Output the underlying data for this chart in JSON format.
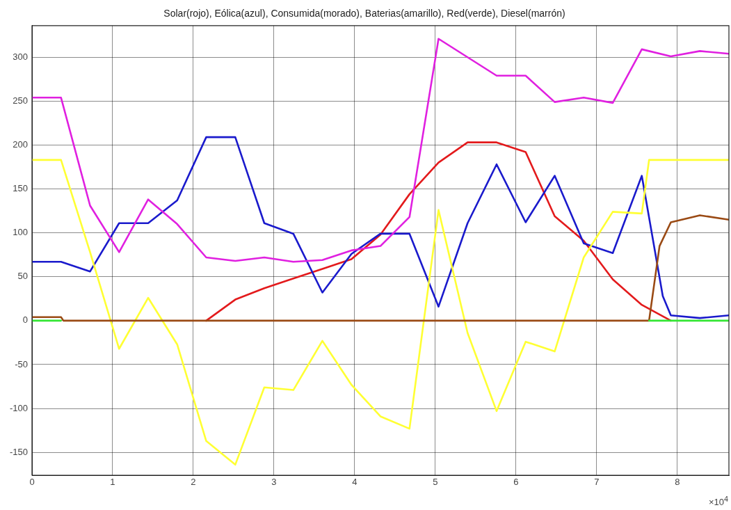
{
  "chart_data": {
    "type": "line",
    "title": "Solar(rojo), Eólica(azul), Consumida(morado), Baterias(amarillo), Red(verde), Diesel(marrón)",
    "xlim": [
      0,
      8.64
    ],
    "ylim": [
      -176,
      336
    ],
    "xticks": [
      0,
      1,
      2,
      3,
      4,
      5,
      6,
      7,
      8
    ],
    "yticks": [
      -150,
      -100,
      -50,
      0,
      50,
      100,
      150,
      200,
      250,
      300
    ],
    "grid": true,
    "legend": false,
    "marker": "none",
    "line_style": "solid",
    "annotations": [
      "×10$^{4}$"
    ],
    "series": [
      {
        "color": "#e31a1c",
        "x": [
          2.16,
          2.52,
          2.88,
          3.24,
          3.6,
          3.96,
          4.32,
          4.68,
          5.04,
          5.4,
          5.76,
          6.12,
          6.48,
          6.84,
          7.2,
          7.56,
          7.92
        ],
        "values": [
          0,
          24,
          37,
          48,
          59,
          70,
          98,
          144,
          180,
          203,
          203,
          192,
          119,
          91,
          47,
          18,
          0
        ]
      },
      {
        "color": "#1a1acc",
        "x": [
          0,
          0.36,
          0.72,
          1.08,
          1.44,
          1.8,
          2.16,
          2.52,
          2.88,
          3.24,
          3.6,
          3.96,
          4.32,
          4.68,
          5.04,
          5.4,
          5.76,
          6.12,
          6.48,
          6.84,
          7.2,
          7.56,
          7.82,
          7.92,
          8.28,
          8.64
        ],
        "values": [
          67,
          67,
          56,
          111,
          111,
          137,
          209,
          209,
          111,
          99,
          32,
          76,
          99,
          99,
          16,
          111,
          178,
          112,
          165,
          88,
          77,
          165,
          28,
          6,
          3,
          6
        ]
      },
      {
        "color": "#e020e0",
        "x": [
          0,
          0.36,
          0.72,
          1.08,
          1.44,
          1.8,
          2.16,
          2.52,
          2.88,
          3.24,
          3.6,
          3.96,
          4.32,
          4.68,
          5.04,
          5.4,
          5.76,
          6.12,
          6.48,
          6.84,
          7.2,
          7.56,
          7.92,
          8.28,
          8.64
        ],
        "values": [
          254,
          254,
          131,
          78,
          138,
          110,
          72,
          68,
          72,
          67,
          69,
          80,
          85,
          118,
          321,
          300,
          279,
          279,
          249,
          254,
          248,
          309,
          301,
          307,
          304
        ]
      },
      {
        "color": "#ffff33",
        "x": [
          0,
          0.36,
          0.72,
          1.08,
          1.44,
          1.8,
          2.16,
          2.52,
          2.88,
          3.24,
          3.6,
          3.96,
          4.32,
          4.68,
          5.04,
          5.4,
          5.76,
          6.12,
          6.48,
          6.84,
          7.2,
          7.56,
          7.65,
          7.92,
          8.28,
          8.64
        ],
        "values": [
          183,
          183,
          78,
          -32,
          26,
          -27,
          -137,
          -164,
          -76,
          -79,
          -23,
          -73,
          -109,
          -123,
          126,
          -14,
          -103,
          -24,
          -35,
          72,
          124,
          122,
          183,
          183,
          183,
          183
        ]
      },
      {
        "color": "#9a4a14",
        "x": [
          0,
          0.36,
          0.39,
          7.65,
          7.78,
          7.92,
          8.28,
          8.64
        ],
        "values": [
          4,
          4,
          0,
          0,
          85,
          112,
          120,
          115
        ]
      },
      {
        "color": "#33e633",
        "x": [
          0,
          0.36,
          4,
          7.65,
          8.64
        ],
        "values": [
          0,
          0,
          null,
          0,
          0
        ]
      }
    ]
  }
}
